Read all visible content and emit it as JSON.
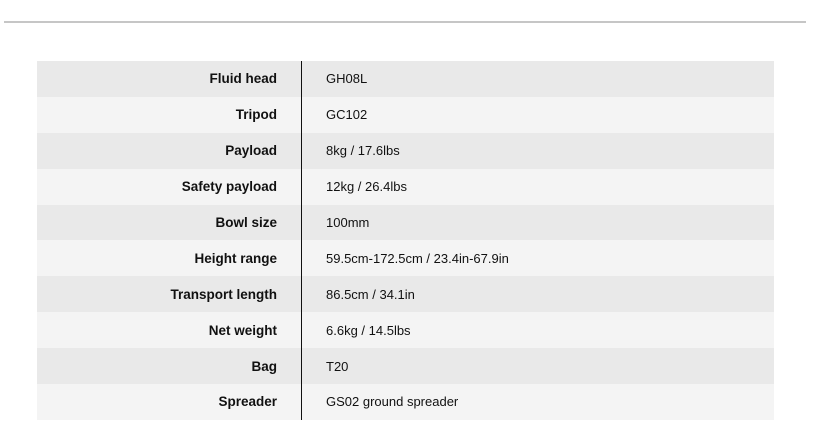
{
  "specs": [
    {
      "label": "Fluid head",
      "value": "GH08L"
    },
    {
      "label": "Tripod",
      "value": "GC102"
    },
    {
      "label": "Payload",
      "value": "8kg / 17.6lbs"
    },
    {
      "label": "Safety payload",
      "value": "12kg / 26.4lbs"
    },
    {
      "label": "Bowl size",
      "value": "100mm"
    },
    {
      "label": "Height range",
      "value": "59.5cm-172.5cm / 23.4in-67.9in"
    },
    {
      "label": "Transport length",
      "value": "86.5cm / 34.1in"
    },
    {
      "label": "Net weight",
      "value": "6.6kg / 14.5lbs"
    },
    {
      "label": "Bag",
      "value": "T20"
    },
    {
      "label": "Spreader",
      "value": "GS02 ground spreader"
    }
  ]
}
